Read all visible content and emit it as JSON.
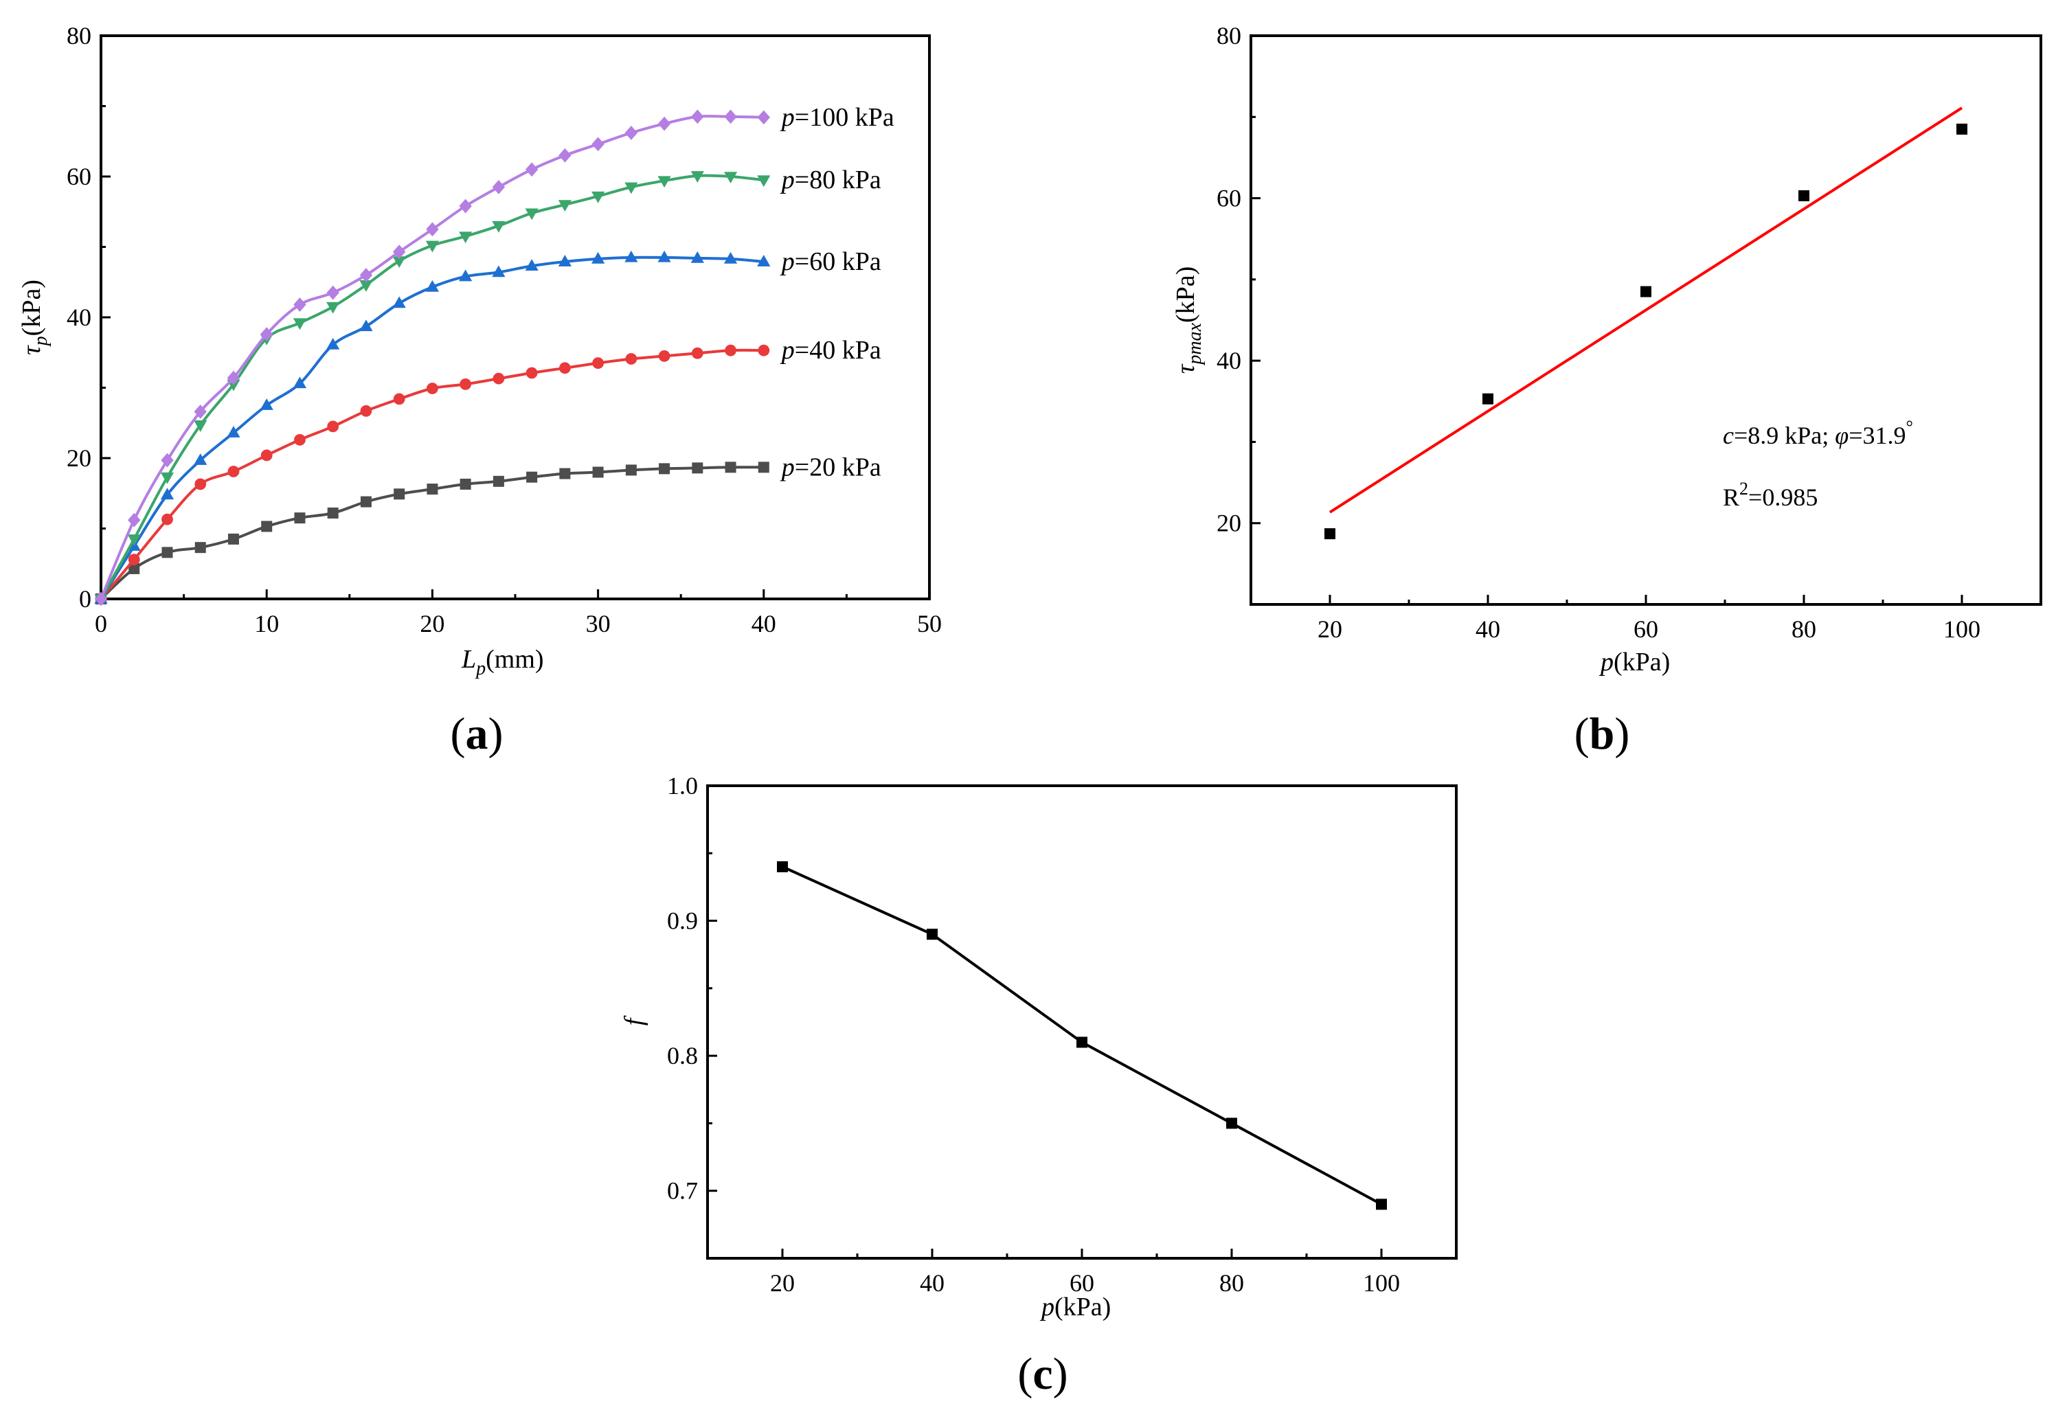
{
  "chart_data": [
    {
      "panel": "(a)",
      "panel_letter": "a",
      "type": "line",
      "xlabel": {
        "main": "L",
        "sub": "p",
        "unit": "(mm)"
      },
      "ylabel": {
        "main": "τ",
        "sub": "p",
        "unit": "(kPa)"
      },
      "xlim": [
        0,
        50
      ],
      "ylim": [
        0,
        80
      ],
      "xticks": [
        0,
        10,
        20,
        30,
        40,
        50
      ],
      "yticks": [
        0,
        20,
        40,
        60,
        80
      ],
      "x": [
        0,
        2,
        4,
        6,
        8,
        10,
        12,
        14,
        16,
        18,
        20,
        22,
        24,
        26,
        28,
        30,
        32,
        34,
        36,
        38,
        40
      ],
      "series": [
        {
          "name": "p=20 kPa",
          "label_p": "p",
          "label_rest": "=20 kPa",
          "marker": "square",
          "color": "#4d4d4d",
          "values": [
            0,
            4.3,
            6.6,
            7.3,
            8.5,
            10.3,
            11.5,
            12.2,
            13.8,
            14.9,
            15.6,
            16.3,
            16.7,
            17.3,
            17.8,
            18.0,
            18.3,
            18.5,
            18.6,
            18.7,
            18.7
          ]
        },
        {
          "name": "p=40 kPa",
          "label_p": "p",
          "label_rest": "=40 kPa",
          "marker": "circle",
          "color": "#e83a3a",
          "values": [
            0,
            5.6,
            11.3,
            16.3,
            18.1,
            20.4,
            22.6,
            24.5,
            26.7,
            28.4,
            29.9,
            30.5,
            31.3,
            32.1,
            32.8,
            33.5,
            34.1,
            34.5,
            34.9,
            35.3,
            35.3
          ]
        },
        {
          "name": "p=60 kPa",
          "label_p": "p",
          "label_rest": "=60 kPa",
          "marker": "triangle-up",
          "color": "#1f6fd1",
          "values": [
            0,
            7.5,
            14.8,
            19.7,
            23.6,
            27.5,
            30.6,
            36.1,
            38.7,
            42.0,
            44.3,
            45.8,
            46.4,
            47.3,
            47.9,
            48.3,
            48.5,
            48.5,
            48.4,
            48.3,
            47.9
          ]
        },
        {
          "name": "p=80 kPa",
          "label_p": "p",
          "label_rest": "=80 kPa",
          "marker": "triangle-down",
          "color": "#3aa66b",
          "values": [
            0,
            8.5,
            17.3,
            24.7,
            30.5,
            37.0,
            39.2,
            41.5,
            44.6,
            48.0,
            50.2,
            51.5,
            53.0,
            54.8,
            56.0,
            57.2,
            58.5,
            59.4,
            60.1,
            60.0,
            59.5
          ]
        },
        {
          "name": "p=100 kPa",
          "label_p": "p",
          "label_rest": "=100 kPa",
          "marker": "diamond",
          "color": "#b57ee3",
          "values": [
            0,
            11.2,
            19.7,
            26.6,
            31.4,
            37.6,
            41.8,
            43.5,
            46.0,
            49.3,
            52.5,
            55.8,
            58.5,
            61.0,
            63.0,
            64.6,
            66.2,
            67.5,
            68.5,
            68.5,
            68.4
          ]
        }
      ]
    },
    {
      "panel": "(b)",
      "panel_letter": "b",
      "type": "scatter",
      "xlabel": {
        "main": "p",
        "unit": "(kPa)"
      },
      "ylabel": {
        "main": "τ",
        "sub": "pmax",
        "unit": "(kPa)"
      },
      "xlim": [
        10,
        110
      ],
      "ylim": [
        10,
        80
      ],
      "xticks": [
        20,
        40,
        60,
        80,
        100
      ],
      "yticks": [
        20,
        40,
        60,
        80
      ],
      "x": [
        20,
        40,
        60,
        80,
        100
      ],
      "values": [
        18.7,
        35.3,
        48.5,
        60.3,
        68.5
      ],
      "fit": {
        "intercept": 8.9,
        "slope": 0.6222,
        "color": "#ff0000",
        "x_range": [
          20,
          100
        ]
      },
      "annotation": {
        "c_sym": "c",
        "c_val": "=8.9 kPa; ",
        "phi_sym": "φ",
        "phi_val": "=31.9",
        "deg": "°",
        "r_base": "R",
        "r_exp": "2",
        "r_val": "=0.985"
      }
    },
    {
      "panel": "(c)",
      "panel_letter": "c",
      "type": "line",
      "xlabel": {
        "main": "p",
        "unit": "(kPa)"
      },
      "ylabel": {
        "main": "f"
      },
      "xlim": [
        10,
        110
      ],
      "ylim": [
        0.65,
        1.0
      ],
      "xticks": [
        20,
        40,
        60,
        80,
        100
      ],
      "yticks": [
        0.7,
        0.8,
        0.9,
        1.0
      ],
      "ytick_labels": [
        "0.7",
        "0.8",
        "0.9",
        "1.0"
      ],
      "x": [
        20,
        40,
        60,
        80,
        100
      ],
      "values": [
        0.94,
        0.89,
        0.81,
        0.75,
        0.69
      ]
    }
  ]
}
